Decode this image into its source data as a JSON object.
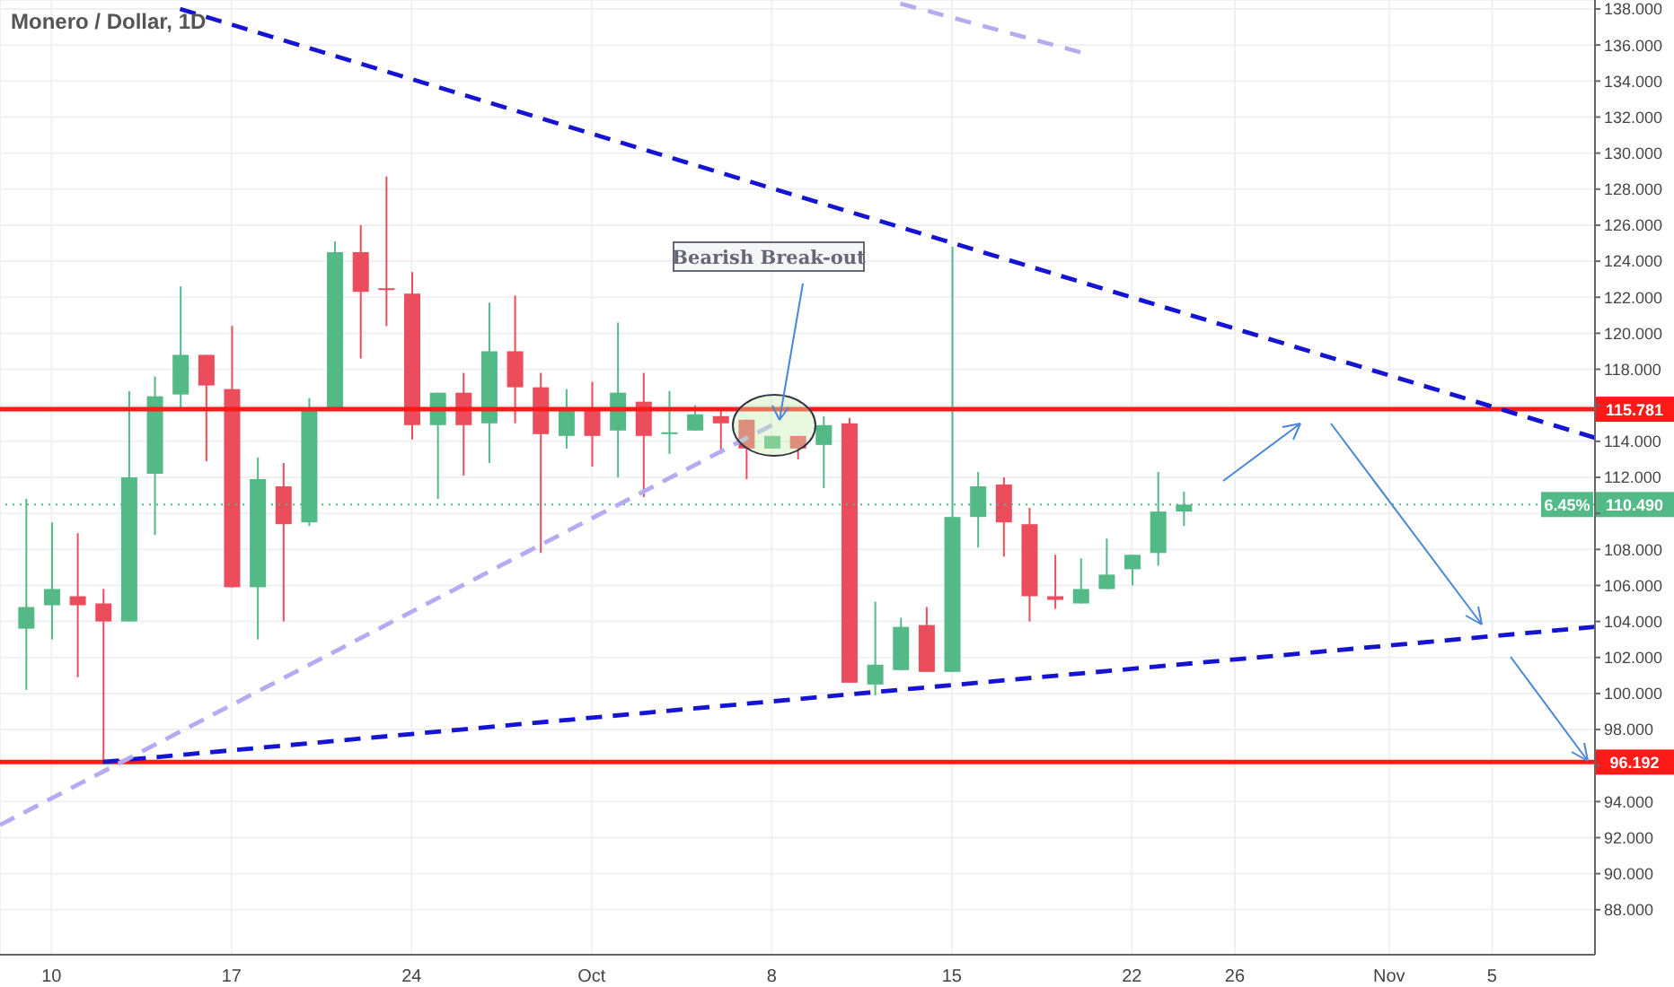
{
  "chart_data": {
    "type": "candlestick",
    "title": "Monero / Dollar, 1D",
    "x": [
      "--09-09",
      "--09-10",
      "--09-11",
      "--09-12",
      "--09-13",
      "--09-14",
      "--09-15",
      "--09-16",
      "--09-17",
      "--09-18",
      "--09-19",
      "--09-20",
      "--09-21",
      "--09-22",
      "--09-23",
      "--09-24",
      "--09-25",
      "--09-26",
      "--09-27",
      "--09-28",
      "--09-29",
      "--09-30",
      "--10-01",
      "--10-02",
      "--10-03",
      "--10-04",
      "--10-05",
      "--10-06",
      "--10-07",
      "--10-08",
      "--10-09",
      "--10-10",
      "--10-11",
      "--10-12",
      "--10-13",
      "--10-14",
      "--10-15",
      "--10-16",
      "--10-17",
      "--10-18",
      "--10-19",
      "--10-20",
      "--10-21",
      "--10-22",
      "--10-23",
      "--10-24"
    ],
    "ohlc": [
      [
        103.6,
        110.8,
        100.2,
        104.8
      ],
      [
        104.9,
        109.5,
        103.0,
        105.8
      ],
      [
        105.4,
        108.9,
        100.9,
        104.9
      ],
      [
        105.0,
        105.8,
        96.2,
        104.0
      ],
      [
        104.0,
        116.8,
        104.0,
        112.0
      ],
      [
        112.2,
        117.6,
        108.8,
        116.5
      ],
      [
        116.6,
        122.6,
        115.7,
        118.8
      ],
      [
        118.8,
        118.8,
        112.9,
        117.1
      ],
      [
        116.9,
        120.4,
        105.9,
        105.9
      ],
      [
        105.9,
        113.1,
        103.0,
        111.9
      ],
      [
        111.5,
        112.8,
        104.0,
        109.4
      ],
      [
        109.5,
        116.4,
        109.3,
        115.7
      ],
      [
        115.7,
        125.1,
        115.7,
        124.5
      ],
      [
        124.5,
        126.0,
        118.6,
        122.3
      ],
      [
        122.5,
        128.7,
        120.4,
        122.4
      ],
      [
        122.2,
        123.4,
        114.1,
        114.9
      ],
      [
        114.9,
        116.7,
        110.8,
        116.7
      ],
      [
        116.7,
        117.8,
        112.1,
        114.9
      ],
      [
        115.0,
        121.7,
        112.8,
        119.0
      ],
      [
        119.0,
        122.1,
        115.0,
        117.0
      ],
      [
        117.0,
        117.8,
        107.8,
        114.4
      ],
      [
        114.3,
        116.9,
        113.6,
        115.7
      ],
      [
        115.7,
        117.3,
        112.6,
        114.3
      ],
      [
        114.6,
        120.6,
        112.0,
        116.7
      ],
      [
        116.2,
        117.8,
        110.9,
        114.3
      ],
      [
        114.4,
        116.8,
        113.3,
        114.5
      ],
      [
        114.6,
        116.0,
        114.6,
        115.5
      ],
      [
        115.4,
        115.9,
        113.3,
        115.0
      ],
      [
        115.2,
        115.2,
        111.9,
        113.6
      ],
      [
        113.6,
        114.3,
        113.6,
        114.3
      ],
      [
        114.3,
        114.3,
        113.0,
        113.6
      ],
      [
        113.8,
        115.4,
        111.4,
        114.9
      ],
      [
        115.0,
        115.3,
        100.6,
        100.6
      ],
      [
        100.5,
        105.1,
        99.9,
        101.6
      ],
      [
        101.3,
        104.2,
        101.3,
        103.7
      ],
      [
        103.8,
        104.8,
        101.2,
        101.2
      ],
      [
        101.2,
        124.8,
        101.2,
        109.8
      ],
      [
        109.8,
        112.3,
        108.1,
        111.5
      ],
      [
        111.6,
        112.0,
        107.6,
        109.5
      ],
      [
        109.4,
        110.3,
        104.0,
        105.4
      ],
      [
        105.4,
        107.7,
        104.7,
        105.2
      ],
      [
        105.0,
        107.5,
        105.0,
        105.8
      ],
      [
        105.8,
        108.6,
        105.8,
        106.6
      ],
      [
        106.9,
        107.7,
        106.0,
        107.7
      ],
      [
        107.8,
        112.3,
        107.1,
        110.1
      ],
      [
        110.1,
        111.2,
        109.3,
        110.49
      ]
    ],
    "colors": [
      "#53b987",
      "#53b987",
      "#eb4d5c",
      "#eb4d5c",
      "#53b987",
      "#53b987",
      "#53b987",
      "#eb4d5c",
      "#eb4d5c",
      "#53b987",
      "#eb4d5c",
      "#53b987",
      "#53b987",
      "#eb4d5c",
      "#eb4d5c",
      "#eb4d5c",
      "#53b987",
      "#eb4d5c",
      "#53b987",
      "#eb4d5c",
      "#eb4d5c",
      "#53b987",
      "#eb4d5c",
      "#53b987",
      "#eb4d5c",
      "#53b987",
      "#53b987",
      "#eb4d5c",
      "#eb4d5c",
      "#53b987",
      "#eb4d5c",
      "#53b987",
      "#eb4d5c",
      "#53b987",
      "#53b987",
      "#eb4d5c",
      "#53b987",
      "#53b987",
      "#eb4d5c",
      "#eb4d5c",
      "#eb4d5c",
      "#53b987",
      "#53b987",
      "#53b987",
      "#53b987",
      "#53b987"
    ],
    "series": [
      {
        "type": "line",
        "color": "#1414d2",
        "line_style": "dashed",
        "x": [
          "--09-15",
          "--11-09"
        ],
        "values": [
          138.0,
          114.2
        ]
      },
      {
        "type": "line",
        "color": "#1414d2",
        "line_style": "dashed",
        "x": [
          "--09-12",
          "--11-09"
        ],
        "values": [
          96.2,
          103.7
        ]
      },
      {
        "type": "line",
        "color": "#b4acf2",
        "line_style": "dashed",
        "x": [
          "--09-08",
          "--10-08"
        ],
        "values": [
          92.7,
          114.9
        ]
      },
      {
        "type": "line",
        "color": "#b4acf2",
        "line_style": "dashed",
        "x": [
          "--10-13",
          "--10-20"
        ],
        "values": [
          138.3,
          135.6
        ]
      }
    ],
    "xlim": [
      "--09-08",
      "--11-09"
    ],
    "xticks": [
      {
        "value": "--09-10",
        "label": "10"
      },
      {
        "value": "--09-17",
        "label": "17"
      },
      {
        "value": "--09-24",
        "label": "24"
      },
      {
        "value": "--10-01",
        "label": "Oct"
      },
      {
        "value": "--10-08",
        "label": "8"
      },
      {
        "value": "--10-15",
        "label": "15"
      },
      {
        "value": "--10-22",
        "label": "22"
      },
      {
        "value": "--10-26",
        "label": "26"
      },
      {
        "value": "--11-01",
        "label": "Nov"
      },
      {
        "value": "--11-05",
        "label": "5"
      }
    ],
    "ylim": [
      85.5,
      138.5
    ],
    "yticks": [
      {
        "value": 88,
        "label": "88.000"
      },
      {
        "value": 90,
        "label": "90.000"
      },
      {
        "value": 92,
        "label": "92.000"
      },
      {
        "value": 94,
        "label": "94.000"
      },
      {
        "value": 96,
        "label": null
      },
      {
        "value": 98,
        "label": "98.000"
      },
      {
        "value": 100,
        "label": "100.000"
      },
      {
        "value": 102,
        "label": "102.000"
      },
      {
        "value": 104,
        "label": "104.000"
      },
      {
        "value": 106,
        "label": "106.000"
      },
      {
        "value": 108,
        "label": "108.000"
      },
      {
        "value": 110,
        "label": null
      },
      {
        "value": 112,
        "label": "112.000"
      },
      {
        "value": 114,
        "label": "114.000"
      },
      {
        "value": 116,
        "label": null
      },
      {
        "value": 118,
        "label": "118.000"
      },
      {
        "value": 120,
        "label": "120.000"
      },
      {
        "value": 122,
        "label": "122.000"
      },
      {
        "value": 124,
        "label": "124.000"
      },
      {
        "value": 126,
        "label": "126.000"
      },
      {
        "value": 128,
        "label": "128.000"
      },
      {
        "value": 130,
        "label": "130.000"
      },
      {
        "value": 132,
        "label": "132.000"
      },
      {
        "value": 134,
        "label": "134.000"
      },
      {
        "value": 136,
        "label": "136.000"
      },
      {
        "value": 138,
        "label": "138.000"
      }
    ],
    "ref_lines": [
      {
        "axis": "y",
        "value": 115.781,
        "label": "115.781",
        "color": "#ff1a1a"
      },
      {
        "axis": "y",
        "value": 96.192,
        "label": "96.192",
        "color": "#ff1a1a"
      },
      {
        "axis": "y",
        "value": 110.49,
        "label": "110.490",
        "color": "#53b987",
        "line_style": "dotted"
      }
    ],
    "annotations": [
      "Bearish Break-out",
      {
        "text": "6.45%",
        "y": 110.49
      }
    ],
    "grid": true
  }
}
